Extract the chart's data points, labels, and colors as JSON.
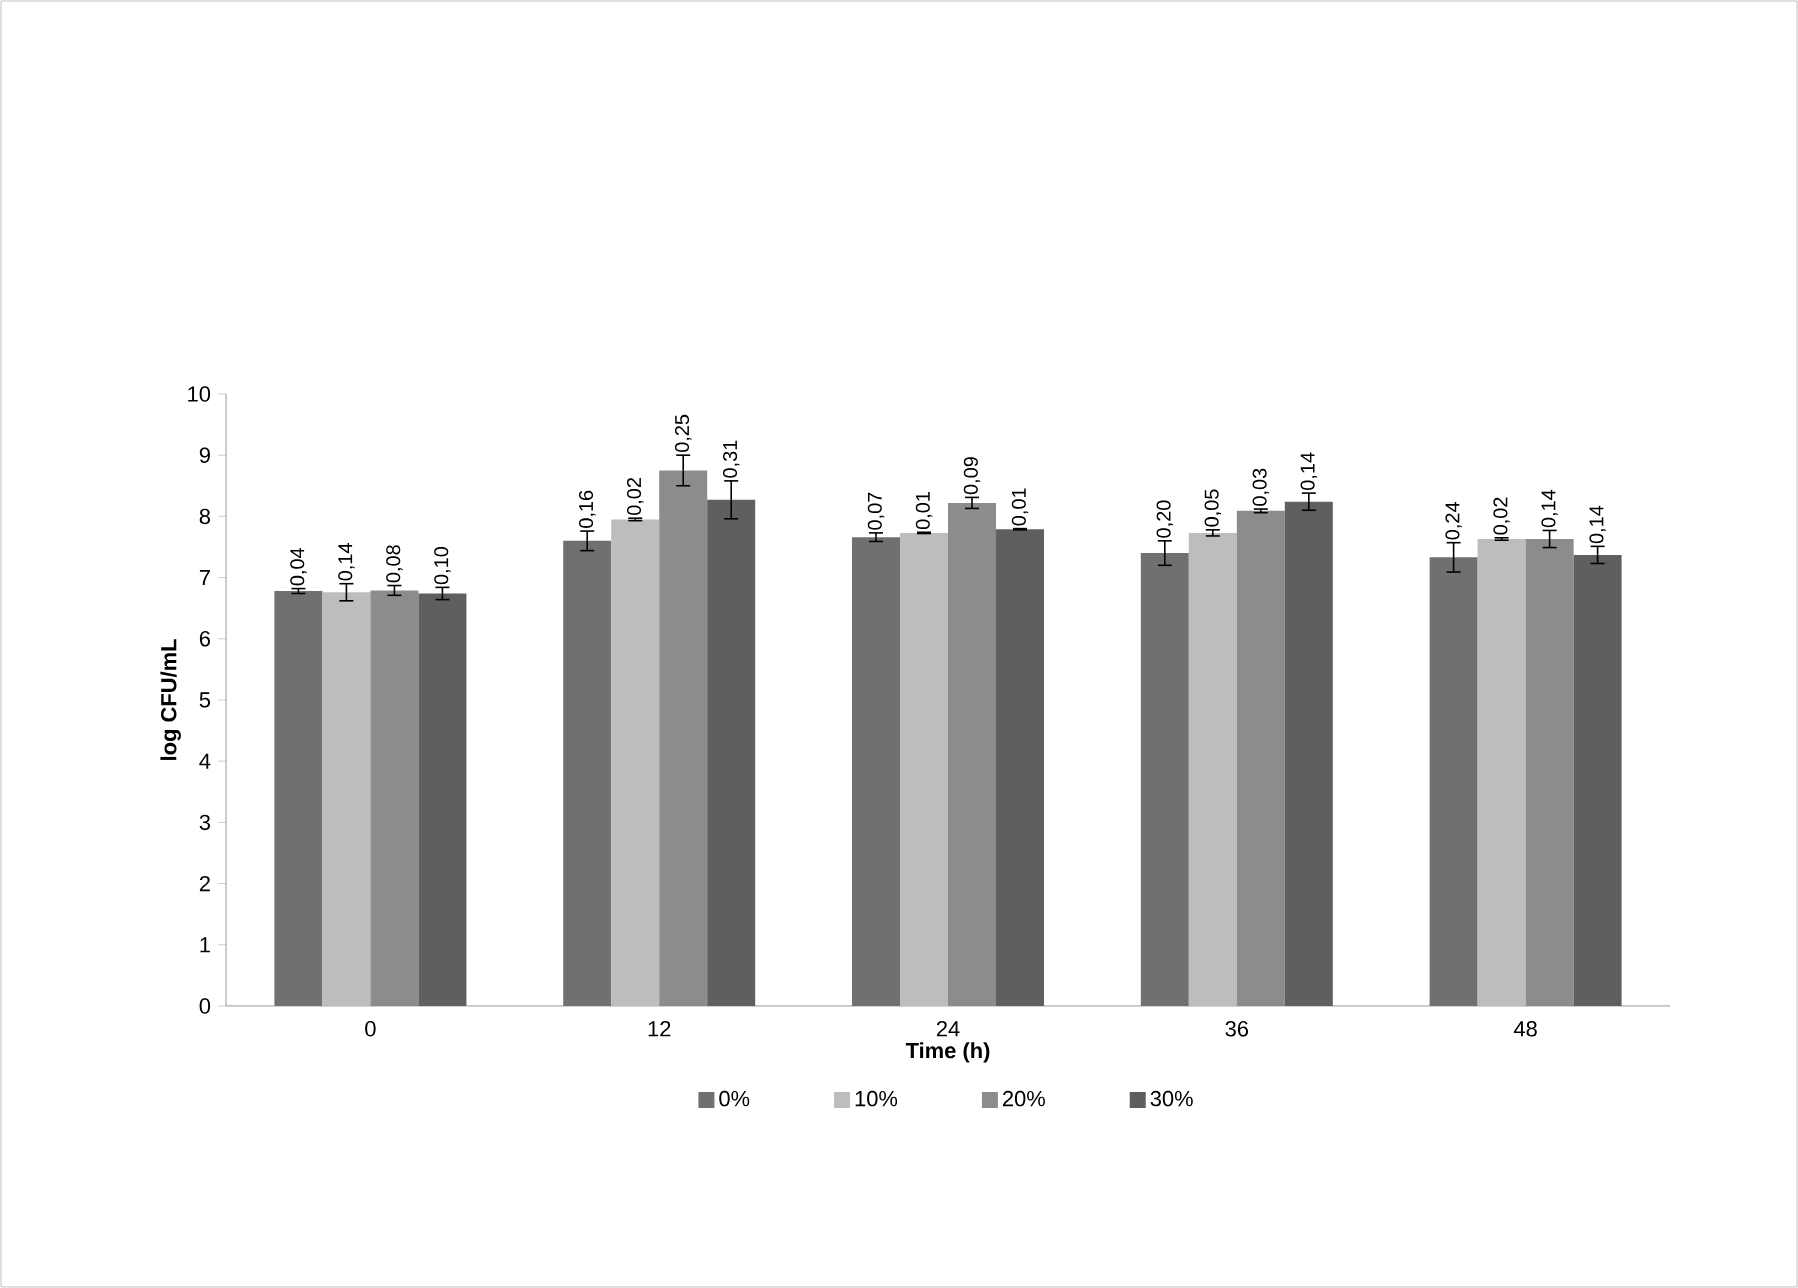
{
  "chart_data": {
    "type": "bar",
    "xlabel": "Time (h)",
    "ylabel": "log CFU/mL",
    "categories": [
      "0",
      "12",
      "24",
      "36",
      "48"
    ],
    "ylim": [
      0,
      10
    ],
    "yticks": [
      0,
      1,
      2,
      3,
      4,
      5,
      6,
      7,
      8,
      9,
      10
    ],
    "legend": "bottom",
    "grid": false,
    "series": [
      {
        "name": "0%",
        "color": "#707070",
        "values": [
          6.78,
          7.6,
          7.66,
          7.4,
          7.33
        ],
        "errors": [
          0.04,
          0.16,
          0.07,
          0.2,
          0.24
        ]
      },
      {
        "name": "10%",
        "color": "#bdbdbd",
        "values": [
          6.76,
          7.95,
          7.73,
          7.73,
          7.63
        ],
        "errors": [
          0.14,
          0.02,
          0.01,
          0.05,
          0.02
        ]
      },
      {
        "name": "20%",
        "color": "#8c8c8c",
        "values": [
          6.79,
          8.75,
          8.22,
          8.09,
          7.63
        ],
        "errors": [
          0.08,
          0.25,
          0.09,
          0.03,
          0.14
        ]
      },
      {
        "name": "30%",
        "color": "#5f5f5f",
        "values": [
          6.74,
          8.27,
          7.79,
          8.24,
          7.37
        ],
        "errors": [
          0.1,
          0.31,
          0.01,
          0.14,
          0.14
        ]
      }
    ],
    "annotations": [
      "0,04",
      "0,16",
      "0,07",
      "0,20",
      "0,24",
      "0,14",
      "0,02",
      "0,01",
      "0,05",
      "0,02",
      "0,08",
      "0,25",
      "0,09",
      "0,03",
      "0,14",
      "0,10",
      "0,31",
      "0,01",
      "0,14",
      "0,14"
    ]
  }
}
